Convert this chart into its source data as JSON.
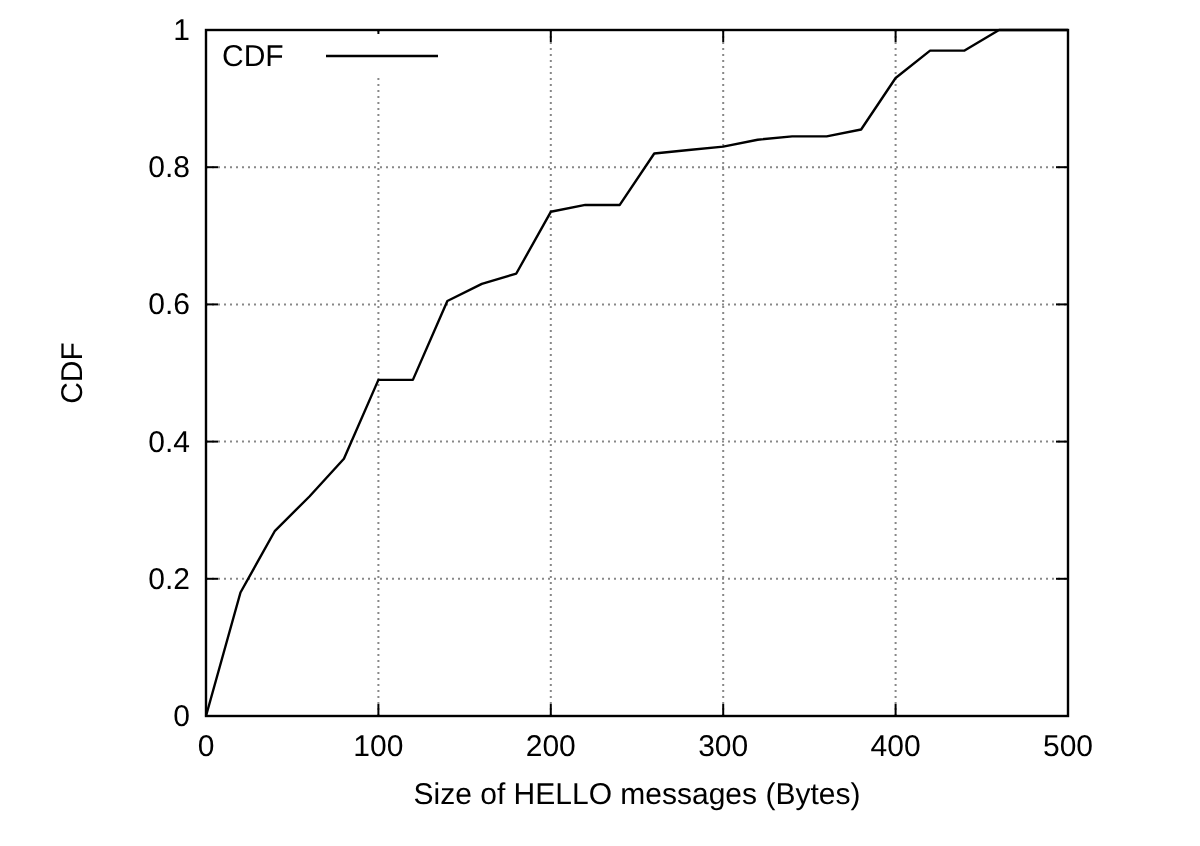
{
  "chart_data": {
    "type": "line",
    "xlabel": "Size of HELLO messages (Bytes)",
    "ylabel": "CDF",
    "series": [
      {
        "name": "CDF",
        "color": "#000000",
        "x": [
          0,
          20,
          40,
          60,
          80,
          100,
          120,
          140,
          160,
          180,
          200,
          220,
          240,
          260,
          280,
          300,
          320,
          340,
          360,
          380,
          400,
          420,
          440,
          460,
          480,
          500
        ],
        "values": [
          0,
          0.18,
          0.27,
          0.32,
          0.375,
          0.49,
          0.49,
          0.605,
          0.63,
          0.645,
          0.735,
          0.745,
          0.745,
          0.82,
          0.825,
          0.83,
          0.84,
          0.845,
          0.845,
          0.855,
          0.93,
          0.97,
          0.97,
          1,
          1,
          1
        ]
      }
    ],
    "xlim": [
      0,
      500
    ],
    "xticks": [
      0,
      100,
      200,
      300,
      400,
      500
    ],
    "ylim": [
      0,
      1
    ],
    "yticks": [
      0,
      0.2,
      0.4,
      0.6,
      0.8,
      1
    ],
    "grid": true,
    "legend": "top left",
    "marker": "none",
    "line_style": "solid"
  }
}
